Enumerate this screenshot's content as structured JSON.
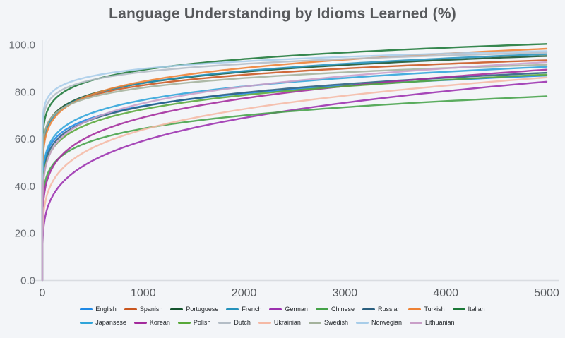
{
  "colors": {
    "background": "#f3f5f8",
    "x_axis_line": "#d9dce1",
    "y_axis_line": "#e4e7eb",
    "title_text": "#57595c",
    "y_tick_text": "#6a6e74",
    "x_tick_text": "#585b5f",
    "legend_text": "#1f2327"
  },
  "chart_data": {
    "type": "line",
    "title": "Language Understanding by Idioms Learned (%)",
    "xlabel": "",
    "ylabel": "",
    "xlim": [
      0,
      5000
    ],
    "ylim": [
      0,
      100
    ],
    "grid": false,
    "legend_position": "bottom",
    "legend_rows": [
      9,
      8
    ],
    "x_ticks": [
      0,
      1000,
      2000,
      3000,
      4000,
      5000
    ],
    "x_tick_labels": [
      "0",
      "1000",
      "2000",
      "3000",
      "4000",
      "5000"
    ],
    "y_ticks": [
      0,
      20,
      40,
      60,
      80,
      100
    ],
    "y_tick_labels": [
      "0.0",
      "20.0",
      "40.0",
      "60.0",
      "80.0",
      "100.0"
    ],
    "model": "y = final * (x/5000)^exponent, saturating growth from 0",
    "x_samples": [
      0,
      100,
      250,
      500,
      1000,
      2000,
      3000,
      4000,
      5000
    ],
    "series": [
      {
        "name": "English",
        "color": "#1e88e5",
        "final": 86.8,
        "exponent": 0.1,
        "values": [
          0,
          58.7,
          64.3,
          68.9,
          73.9,
          79.2,
          82.5,
          84.9,
          86.8
        ]
      },
      {
        "name": "Spanish",
        "color": "#c9561f",
        "final": 93.3,
        "exponent": 0.075,
        "values": [
          0,
          69.6,
          74.5,
          78.5,
          82.7,
          87.1,
          89.8,
          91.8,
          93.3
        ]
      },
      {
        "name": "Portuguese",
        "color": "#14532d",
        "final": 95.1,
        "exponent": 0.08,
        "values": [
          0,
          69.5,
          74.8,
          79.1,
          83.6,
          88.3,
          91.3,
          93.4,
          95.1
        ]
      },
      {
        "name": "French",
        "color": "#2592bb",
        "final": 95.9,
        "exponent": 0.085,
        "values": [
          0,
          68.8,
          74.3,
          78.8,
          83.6,
          88.7,
          91.9,
          94.1,
          95.9
        ]
      },
      {
        "name": "German",
        "color": "#9b2fae",
        "final": 84.2,
        "exponent": 0.22,
        "values": [
          0,
          35.6,
          43.5,
          50.8,
          59.1,
          68.8,
          75.3,
          80.2,
          84.2
        ]
      },
      {
        "name": "Chinese",
        "color": "#44a248",
        "final": 78.0,
        "exponent": 0.12,
        "values": [
          0,
          48.8,
          54.4,
          59.2,
          64.3,
          69.9,
          73.4,
          75.9,
          78.0
        ]
      },
      {
        "name": "Russian",
        "color": "#2a5f7f",
        "final": 88.0,
        "exponent": 0.11,
        "values": [
          0,
          57.2,
          63.3,
          68.3,
          73.7,
          79.6,
          83.2,
          85.9,
          88.0
        ]
      },
      {
        "name": "Turkish",
        "color": "#ee8133",
        "final": 98.2,
        "exponent": 0.095,
        "values": [
          0,
          67.7,
          73.8,
          78.9,
          84.3,
          90.0,
          93.6,
          96.1,
          98.2
        ]
      },
      {
        "name": "Italian",
        "color": "#1b7837",
        "final": 100.2,
        "exponent": 0.072,
        "values": [
          0,
          75.7,
          80.8,
          84.9,
          89.3,
          93.8,
          96.6,
          98.6,
          100.2
        ]
      },
      {
        "name": "Japansese",
        "color": "#2fa4d9",
        "final": 90.5,
        "exponent": 0.105,
        "values": [
          0,
          60.0,
          66.1,
          71.0,
          76.5,
          82.2,
          85.8,
          88.4,
          90.5
        ]
      },
      {
        "name": "Korean",
        "color": "#a32a9c",
        "final": 89.3,
        "exponent": 0.16,
        "values": [
          0,
          47.8,
          55.3,
          61.8,
          69.0,
          77.2,
          82.3,
          86.2,
          89.3
        ]
      },
      {
        "name": "Polish",
        "color": "#58a839",
        "final": 87.2,
        "exponent": 0.115,
        "values": [
          0,
          55.6,
          61.8,
          66.9,
          72.5,
          78.5,
          82.2,
          85.0,
          87.2
        ]
      },
      {
        "name": "Dutch",
        "color": "#b4bdc6",
        "final": 96.5,
        "exponent": 0.055,
        "values": [
          0,
          77.8,
          81.8,
          85.0,
          88.3,
          91.8,
          93.8,
          95.3,
          96.5
        ]
      },
      {
        "name": "Ukrainian",
        "color": "#f5b9a5",
        "final": 86.0,
        "exponent": 0.185,
        "values": [
          0,
          41.7,
          49.4,
          56.2,
          63.9,
          72.6,
          78.3,
          82.5,
          86.0
        ]
      },
      {
        "name": "Swedish",
        "color": "#a4b29c",
        "final": 91.4,
        "exponent": 0.07,
        "values": [
          0,
          69.6,
          74.1,
          77.8,
          81.7,
          85.7,
          88.2,
          90.0,
          91.4
        ]
      },
      {
        "name": "Norwegian",
        "color": "#a8cde9",
        "final": 97.2,
        "exponent": 0.05,
        "values": [
          0,
          79.9,
          83.7,
          86.6,
          89.7,
          92.9,
          94.8,
          96.1,
          97.2
        ]
      },
      {
        "name": "Lithuanian",
        "color": "#c99fc8",
        "final": 92.5,
        "exponent": 0.13,
        "values": [
          0,
          55.6,
          62.7,
          68.5,
          75.0,
          82.1,
          86.6,
          89.9,
          92.5
        ]
      }
    ]
  }
}
